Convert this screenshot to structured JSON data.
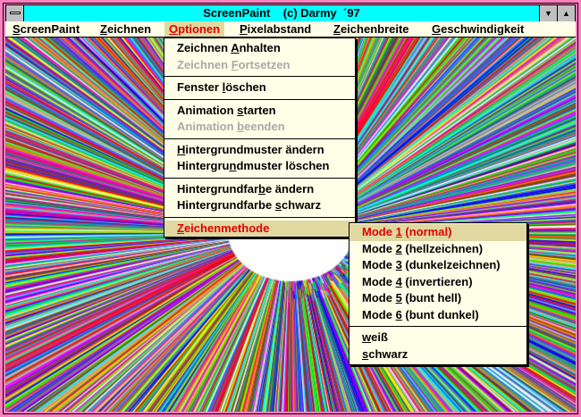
{
  "window": {
    "title": "ScreenPaint    (c) Darmy  ´97",
    "frame_color": "#ff80c0",
    "title_color": "#00ffff"
  },
  "menubar": [
    {
      "label": "ScreenPaint",
      "key": 0
    },
    {
      "label": "Zeichnen",
      "key": 0
    },
    {
      "label": "Optionen",
      "key": 0,
      "active": true
    },
    {
      "label": "Pixelabstand",
      "key": 0
    },
    {
      "label": "Zeichenbreite",
      "key": 0
    },
    {
      "label": "Geschwindigkeit",
      "key": 0
    }
  ],
  "options_menu": [
    {
      "label": "Zeichnen Anhalten",
      "key": 9
    },
    {
      "label": "Zeichnen Fortsetzen",
      "key": 9,
      "disabled": true
    },
    {
      "label": "Fenster löschen",
      "key": 8
    },
    {
      "label": "Animation starten",
      "key": 10
    },
    {
      "label": "Animation beenden",
      "key": 10,
      "disabled": true
    },
    {
      "label": "Hintergrundmuster ändern",
      "key": 0
    },
    {
      "label": "Hintergrundmuster löschen",
      "key": 9
    },
    {
      "label": "Hintergrundfarbe ändern",
      "key": 14
    },
    {
      "label": "Hintergrundfarbe schwarz",
      "key": 17
    },
    {
      "label": "Zeichenmethode",
      "key": 0,
      "highlighted": true
    }
  ],
  "submenu": [
    {
      "label": "Mode 1 (normal)",
      "key": 5,
      "highlighted": true
    },
    {
      "label": "Mode 2 (hellzeichnen)",
      "key": 5
    },
    {
      "label": "Mode 3 (dunkelzeichnen)",
      "key": 5
    },
    {
      "label": "Mode 4 (invertieren)",
      "key": 5
    },
    {
      "label": "Mode 5 (bunt hell)",
      "key": 5
    },
    {
      "label": "Mode 6 (bunt dunkel)",
      "key": 5
    },
    {
      "label": "weiß",
      "key": 0
    },
    {
      "label": "schwarz",
      "key": 0
    }
  ],
  "colors": {
    "menu_bg": "#ffffe8",
    "highlight_bg": "#e0d8a0",
    "highlight_text": "#e00000"
  }
}
